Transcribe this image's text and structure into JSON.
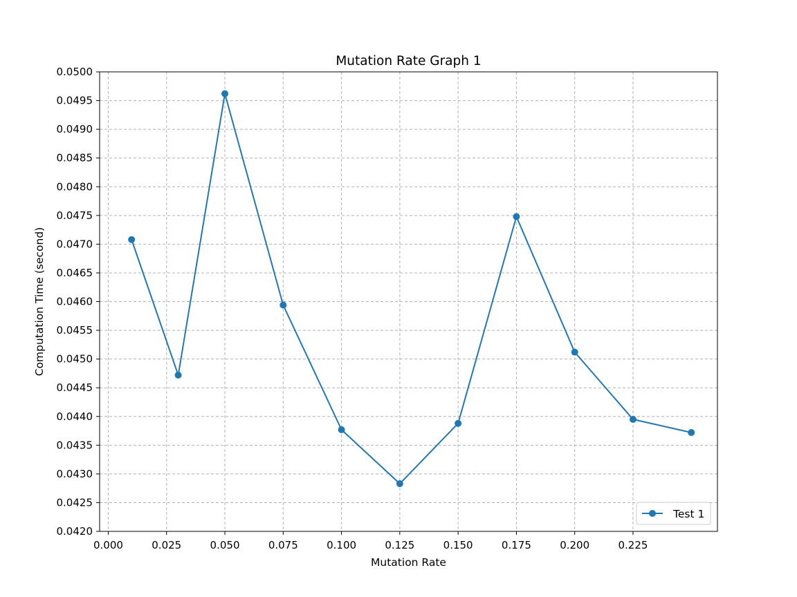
{
  "chart_data": {
    "type": "line",
    "title": "Mutation Rate Graph 1",
    "xlabel": "Mutation Rate",
    "ylabel": "Computation Time (second)",
    "xlim": [
      -0.0037,
      0.2612
    ],
    "ylim": [
      0.042,
      0.05
    ],
    "x_ticks": [
      0.0,
      0.025,
      0.05,
      0.075,
      0.1,
      0.125,
      0.15,
      0.175,
      0.2,
      0.225
    ],
    "x_tick_labels": [
      "0.000",
      "0.025",
      "0.050",
      "0.075",
      "0.100",
      "0.125",
      "0.150",
      "0.175",
      "0.200",
      "0.225"
    ],
    "y_ticks": [
      0.042,
      0.0425,
      0.043,
      0.0435,
      0.044,
      0.0445,
      0.045,
      0.0455,
      0.046,
      0.0465,
      0.047,
      0.0475,
      0.048,
      0.0485,
      0.049,
      0.0495,
      0.05
    ],
    "y_tick_labels": [
      "0.0420",
      "0.0425",
      "0.0430",
      "0.0435",
      "0.0440",
      "0.0445",
      "0.0450",
      "0.0455",
      "0.0460",
      "0.0465",
      "0.0470",
      "0.0475",
      "0.0480",
      "0.0485",
      "0.0490",
      "0.0495",
      "0.0500"
    ],
    "grid": true,
    "legend_position": "lower-right",
    "series": [
      {
        "name": "Test 1",
        "color": "#1f77b4",
        "x": [
          0.01,
          0.03,
          0.05,
          0.075,
          0.1,
          0.125,
          0.15,
          0.175,
          0.2,
          0.225,
          0.25
        ],
        "y": [
          0.04708,
          0.04472,
          0.04962,
          0.04594,
          0.04377,
          0.04283,
          0.04388,
          0.04748,
          0.04512,
          0.04395,
          0.04372
        ]
      }
    ]
  }
}
